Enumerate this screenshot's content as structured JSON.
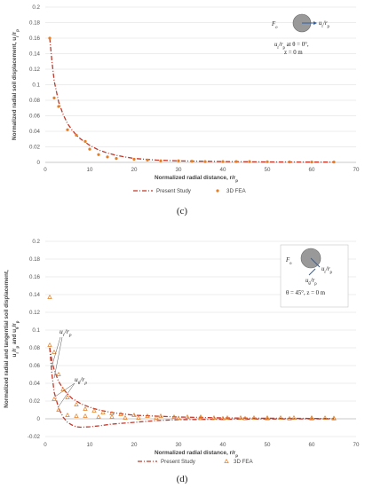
{
  "colors": {
    "series_line": "#c0392b",
    "fea_marker": "#e67e22",
    "inset_circle": "#999999",
    "arrow": "#2e5fa8"
  },
  "chart_data": [
    {
      "type": "line",
      "caption": "(c)",
      "xlabel": "Normalized radial distance, r/r",
      "xlabel_sub": "p",
      "ylabel": "Normalized radial soil displacement, u/r",
      "ylabel_subs": [
        "r",
        "p"
      ],
      "xlim": [
        0,
        70
      ],
      "ylim": [
        0,
        0.2
      ],
      "xticks": [
        0,
        10,
        20,
        30,
        40,
        50,
        60,
        70
      ],
      "yticks": [
        0,
        0.02,
        0.04,
        0.06,
        0.08,
        0.1,
        0.12,
        0.14,
        0.16,
        0.18,
        0.2
      ],
      "legend_position": "bottom",
      "series": [
        {
          "name": "Present Study",
          "style": "dash-dot line",
          "x": [
            1,
            1.5,
            2,
            3,
            4,
            5,
            6,
            7,
            8,
            9,
            10,
            12,
            14,
            16,
            18,
            20,
            25,
            30,
            35,
            40,
            50,
            60,
            65
          ],
          "y": [
            0.16,
            0.13,
            0.105,
            0.078,
            0.062,
            0.05,
            0.042,
            0.035,
            0.03,
            0.026,
            0.022,
            0.016,
            0.012,
            0.009,
            0.007,
            0.005,
            0.003,
            0.002,
            0.0015,
            0.001,
            0.0006,
            0.0004,
            0.0003
          ]
        },
        {
          "name": "3D FEA",
          "style": "filled dots",
          "x": [
            1,
            2,
            3,
            5,
            7,
            9,
            10,
            12,
            14,
            16,
            20,
            23,
            26,
            30,
            33,
            36,
            40,
            43,
            46,
            50,
            55,
            60,
            65
          ],
          "y": [
            0.16,
            0.083,
            0.072,
            0.042,
            0.035,
            0.027,
            0.017,
            0.01,
            0.007,
            0.005,
            0.004,
            0.003,
            0.002,
            0.002,
            0.0015,
            0.001,
            0.001,
            0.001,
            0.001,
            0.0008,
            0.0006,
            0.0005,
            0.0004
          ]
        }
      ],
      "inset": {
        "force_label": "F",
        "force_sub": "o",
        "arrow_label": "u/r",
        "line1": "u/r at θ = 0°,",
        "line2": "z = 0 m"
      }
    },
    {
      "type": "line",
      "caption": "(d)",
      "xlabel": "Normalized radial distance, r/r",
      "xlabel_sub": "p",
      "ylabel_line1": "Normalized radial and tangential soil displacement,",
      "ylabel_line2": "u/r and u/r",
      "xlim": [
        0,
        70
      ],
      "ylim": [
        -0.02,
        0.2
      ],
      "xticks": [
        0,
        10,
        20,
        30,
        40,
        50,
        60,
        70
      ],
      "yticks": [
        -0.02,
        0,
        0.02,
        0.04,
        0.06,
        0.08,
        0.1,
        0.12,
        0.14,
        0.16,
        0.18,
        0.2
      ],
      "legend_position": "bottom",
      "series": [
        {
          "name": "Present Study",
          "style": "dash-dot line",
          "component": "radial",
          "x": [
            1,
            1.5,
            2,
            3,
            4,
            5,
            6,
            8,
            10,
            12,
            15,
            20,
            25,
            30,
            40,
            50,
            60,
            65
          ],
          "y": [
            0.08,
            0.065,
            0.055,
            0.042,
            0.034,
            0.028,
            0.023,
            0.017,
            0.013,
            0.01,
            0.007,
            0.004,
            0.003,
            0.002,
            0.001,
            0.0006,
            0.0004,
            0.0003
          ]
        },
        {
          "name": "Present Study",
          "style": "dash-dot line",
          "component": "tangential",
          "x": [
            1,
            1.5,
            2,
            3,
            4,
            5,
            6,
            7,
            8,
            10,
            12,
            15,
            20,
            25,
            30,
            40,
            50,
            60,
            65
          ],
          "y": [
            0.08,
            0.05,
            0.03,
            0.012,
            0.002,
            -0.004,
            -0.007,
            -0.009,
            -0.0095,
            -0.009,
            -0.008,
            -0.006,
            -0.004,
            -0.002,
            -0.001,
            -0.0005,
            -0.0002,
            -0.0001,
            0
          ]
        },
        {
          "name": "3D FEA",
          "style": "open triangles",
          "x": [
            1,
            2,
            3,
            4,
            5,
            7,
            9,
            11,
            13,
            15,
            17,
            20,
            23,
            26,
            29,
            32,
            35,
            38,
            41,
            44,
            47,
            50,
            53,
            56,
            60,
            63,
            65
          ],
          "y": [
            0.137,
            0.075,
            0.05,
            0.033,
            0.024,
            0.016,
            0.011,
            0.009,
            0.007,
            0.006,
            0.005,
            0.004,
            0.003,
            0.003,
            0.002,
            0.002,
            0.002,
            0.001,
            0.001,
            0.001,
            0.001,
            0.001,
            0.001,
            0.001,
            0.001,
            0.0008,
            0.0006
          ]
        },
        {
          "name": "3D FEA",
          "style": "open triangles",
          "component": "tangential",
          "x": [
            1,
            2,
            3,
            5,
            7,
            9,
            12,
            15,
            18,
            21,
            25,
            30,
            35,
            40,
            45,
            50,
            55,
            60,
            65
          ],
          "y": [
            0.083,
            0.022,
            0.01,
            0.004,
            0.003,
            0.003,
            0.002,
            0.002,
            0.001,
            0.001,
            0.001,
            0.0006,
            0.0005,
            0.0004,
            0.0003,
            0.0003,
            0.0002,
            0.0002,
            0.0002
          ]
        }
      ],
      "annotations": {
        "radial": "u/r",
        "tangential": "u/r"
      },
      "inset": {
        "force_label": "F",
        "force_sub": "o",
        "arrow_label": "u/r",
        "arrow_label2": "u/r",
        "line1": "θ = 45°, z = 0 m"
      }
    }
  ]
}
